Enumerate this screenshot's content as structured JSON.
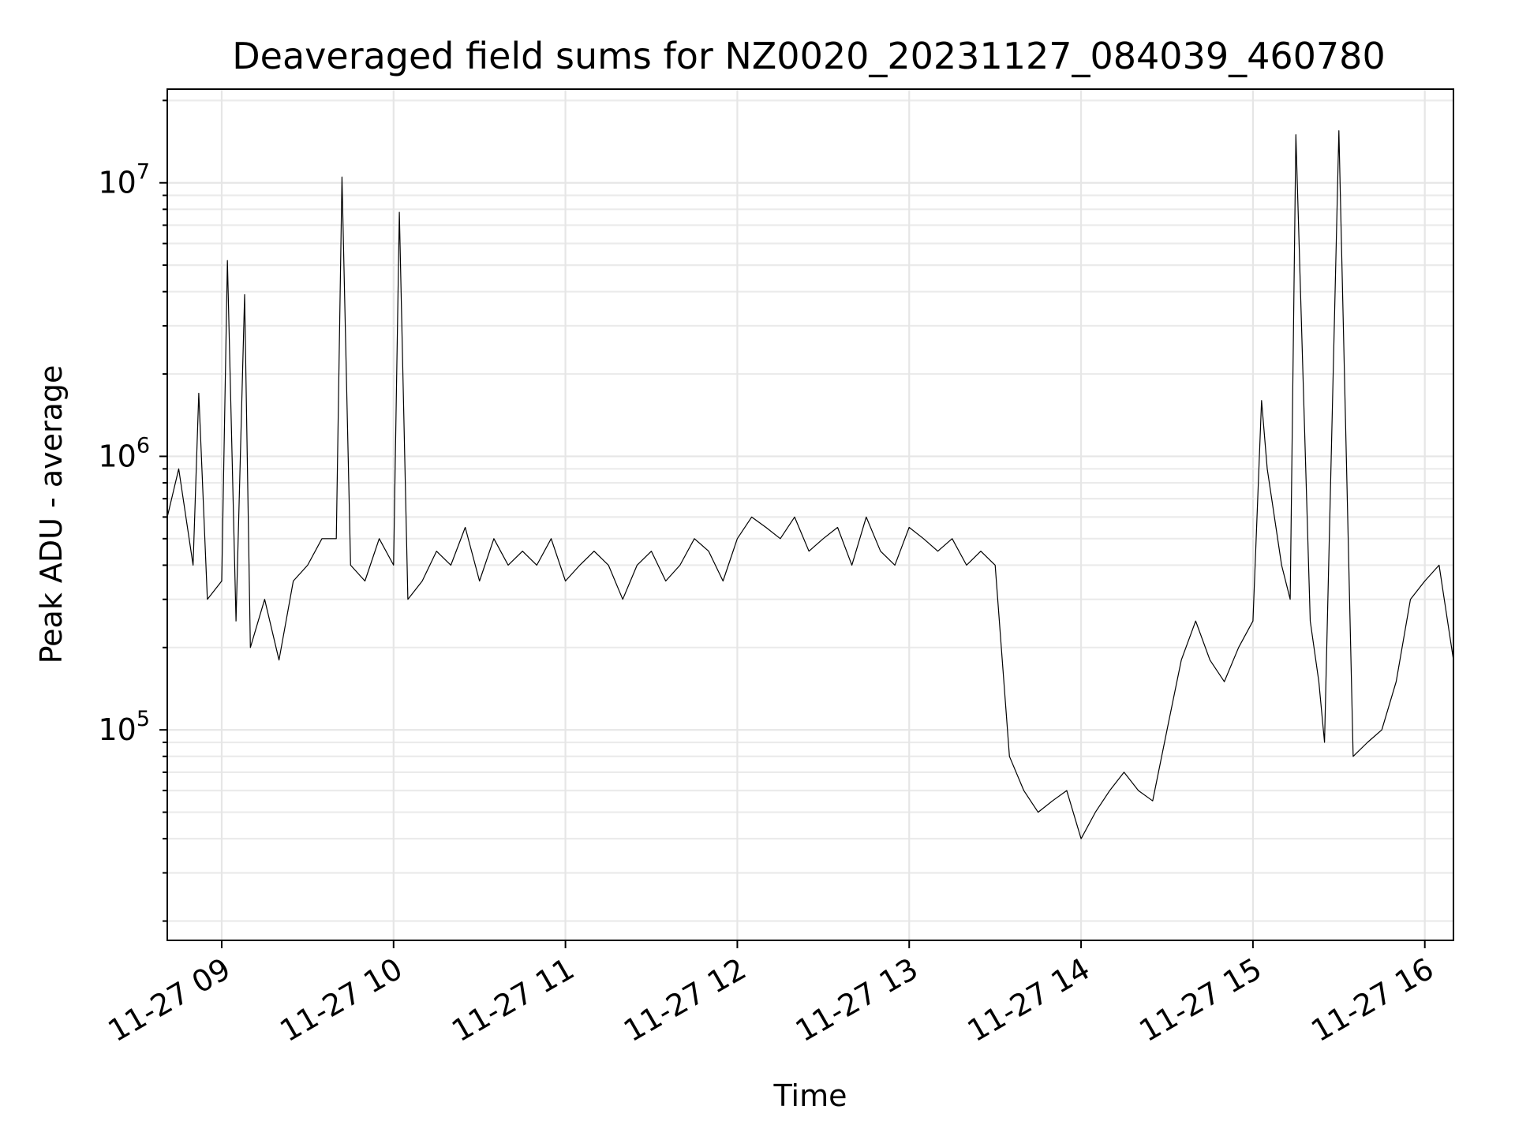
{
  "chart_data": {
    "type": "line",
    "title": "Deaveraged field sums for NZ0020_20231127_084039_460780",
    "xlabel": "Time",
    "ylabel": "Peak ADU - average",
    "yscale": "log",
    "ylim": [
      17000,
      22000000
    ],
    "xlim": [
      "2023-11-27 08:41",
      "2023-11-27 16:10"
    ],
    "x_ticks": [
      "11-27 09",
      "11-27 10",
      "11-27 11",
      "11-27 12",
      "11-27 13",
      "11-27 14",
      "11-27 15",
      "11-27 16"
    ],
    "y_ticks": [
      {
        "base": "10",
        "exp": "5"
      },
      {
        "base": "10",
        "exp": "6"
      },
      {
        "base": "10",
        "exp": "7"
      }
    ],
    "grid": true,
    "series": [
      {
        "color": "#000000",
        "x": [
          "2023-11-27 08:41",
          "2023-11-27 08:45",
          "2023-11-27 08:50",
          "2023-11-27 08:52",
          "2023-11-27 08:55",
          "2023-11-27 09:00",
          "2023-11-27 09:02",
          "2023-11-27 09:05",
          "2023-11-27 09:08",
          "2023-11-27 09:10",
          "2023-11-27 09:15",
          "2023-11-27 09:20",
          "2023-11-27 09:25",
          "2023-11-27 09:30",
          "2023-11-27 09:35",
          "2023-11-27 09:40",
          "2023-11-27 09:42",
          "2023-11-27 09:45",
          "2023-11-27 09:50",
          "2023-11-27 09:55",
          "2023-11-27 10:00",
          "2023-11-27 10:02",
          "2023-11-27 10:05",
          "2023-11-27 10:10",
          "2023-11-27 10:15",
          "2023-11-27 10:20",
          "2023-11-27 10:25",
          "2023-11-27 10:30",
          "2023-11-27 10:35",
          "2023-11-27 10:40",
          "2023-11-27 10:45",
          "2023-11-27 10:50",
          "2023-11-27 10:55",
          "2023-11-27 11:00",
          "2023-11-27 11:05",
          "2023-11-27 11:10",
          "2023-11-27 11:15",
          "2023-11-27 11:20",
          "2023-11-27 11:25",
          "2023-11-27 11:30",
          "2023-11-27 11:35",
          "2023-11-27 11:40",
          "2023-11-27 11:45",
          "2023-11-27 11:50",
          "2023-11-27 11:55",
          "2023-11-27 12:00",
          "2023-11-27 12:05",
          "2023-11-27 12:10",
          "2023-11-27 12:15",
          "2023-11-27 12:20",
          "2023-11-27 12:25",
          "2023-11-27 12:30",
          "2023-11-27 12:35",
          "2023-11-27 12:40",
          "2023-11-27 12:45",
          "2023-11-27 12:50",
          "2023-11-27 12:55",
          "2023-11-27 13:00",
          "2023-11-27 13:05",
          "2023-11-27 13:10",
          "2023-11-27 13:15",
          "2023-11-27 13:20",
          "2023-11-27 13:25",
          "2023-11-27 13:30",
          "2023-11-27 13:35",
          "2023-11-27 13:40",
          "2023-11-27 13:45",
          "2023-11-27 13:50",
          "2023-11-27 13:55",
          "2023-11-27 14:00",
          "2023-11-27 14:05",
          "2023-11-27 14:10",
          "2023-11-27 14:15",
          "2023-11-27 14:20",
          "2023-11-27 14:25",
          "2023-11-27 14:30",
          "2023-11-27 14:35",
          "2023-11-27 14:40",
          "2023-11-27 14:45",
          "2023-11-27 14:50",
          "2023-11-27 14:55",
          "2023-11-27 15:00",
          "2023-11-27 15:03",
          "2023-11-27 15:05",
          "2023-11-27 15:10",
          "2023-11-27 15:13",
          "2023-11-27 15:15",
          "2023-11-27 15:20",
          "2023-11-27 15:23",
          "2023-11-27 15:25",
          "2023-11-27 15:30",
          "2023-11-27 15:35",
          "2023-11-27 15:40",
          "2023-11-27 15:45",
          "2023-11-27 15:50",
          "2023-11-27 15:55",
          "2023-11-27 16:00",
          "2023-11-27 16:05",
          "2023-11-27 16:10"
        ],
        "y": [
          600000,
          900000,
          400000,
          1700000,
          300000,
          350000,
          5200000,
          250000,
          3900000,
          200000,
          300000,
          180000,
          350000,
          400000,
          500000,
          500000,
          10500000,
          400000,
          350000,
          500000,
          400000,
          7800000,
          300000,
          350000,
          450000,
          400000,
          550000,
          350000,
          500000,
          400000,
          450000,
          400000,
          500000,
          350000,
          400000,
          450000,
          400000,
          300000,
          400000,
          450000,
          350000,
          400000,
          500000,
          450000,
          350000,
          500000,
          600000,
          550000,
          500000,
          600000,
          450000,
          500000,
          550000,
          400000,
          600000,
          450000,
          400000,
          550000,
          500000,
          450000,
          500000,
          400000,
          450000,
          400000,
          80000,
          60000,
          50000,
          55000,
          60000,
          40000,
          50000,
          60000,
          70000,
          60000,
          55000,
          100000,
          180000,
          250000,
          180000,
          150000,
          200000,
          250000,
          1600000,
          900000,
          400000,
          300000,
          15000000,
          250000,
          150000,
          90000,
          15500000,
          80000,
          90000,
          100000,
          150000,
          300000,
          350000,
          400000,
          180000
        ]
      }
    ]
  }
}
